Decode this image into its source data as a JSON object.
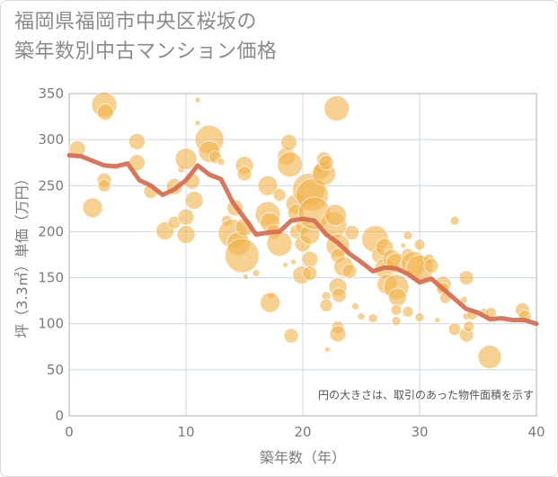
{
  "title_line1": "福岡県福岡市中央区桜坂の",
  "title_line2": "築年数別中古マンション価格",
  "chart_data": {
    "type": "scatter",
    "xlabel": "築年数（年）",
    "ylabel": "坪（3.3㎡）単価（万円）",
    "xlim": [
      0,
      40
    ],
    "ylim": [
      0,
      350
    ],
    "x_ticks": [
      "0",
      "10",
      "20",
      "30",
      "40"
    ],
    "y_ticks": [
      "0",
      "50",
      "100",
      "150",
      "200",
      "250",
      "300",
      "350"
    ],
    "grid": true,
    "note": "円の大きさは、取引のあった物件面積を示す",
    "colors": {
      "bubble": "#f2b24a",
      "trend": "#d66a50",
      "grid": "#c9d7e6"
    },
    "trend_line": {
      "x": [
        0,
        1,
        2,
        3,
        4,
        5,
        6,
        7,
        8,
        9,
        10,
        11,
        12,
        13,
        14,
        15,
        16,
        17,
        18,
        19,
        20,
        21,
        22,
        23,
        24,
        25,
        26,
        27,
        28,
        29,
        30,
        31,
        32,
        33,
        34,
        35,
        36,
        37,
        38,
        39,
        40
      ],
      "y": [
        283,
        282,
        277,
        272,
        271,
        274,
        256,
        250,
        240,
        246,
        256,
        272,
        262,
        257,
        232,
        215,
        197,
        199,
        200,
        212,
        214,
        212,
        197,
        188,
        176,
        167,
        157,
        161,
        160,
        154,
        145,
        149,
        138,
        127,
        116,
        112,
        105,
        106,
        104,
        104,
        100
      ]
    },
    "bubbles": [
      {
        "x": 0.7,
        "y": 290,
        "r": 9
      },
      {
        "x": 2,
        "y": 226,
        "r": 11
      },
      {
        "x": 3,
        "y": 338,
        "r": 14
      },
      {
        "x": 3.1,
        "y": 330,
        "r": 9
      },
      {
        "x": 3,
        "y": 256,
        "r": 8
      },
      {
        "x": 3,
        "y": 250,
        "r": 7
      },
      {
        "x": 5.8,
        "y": 298,
        "r": 9
      },
      {
        "x": 5.8,
        "y": 275,
        "r": 9
      },
      {
        "x": 7,
        "y": 244,
        "r": 8
      },
      {
        "x": 8.2,
        "y": 201,
        "r": 10
      },
      {
        "x": 9,
        "y": 249,
        "r": 9
      },
      {
        "x": 9,
        "y": 210,
        "r": 7
      },
      {
        "x": 9.6,
        "y": 268,
        "r": 4
      },
      {
        "x": 10,
        "y": 197,
        "r": 10
      },
      {
        "x": 10,
        "y": 216,
        "r": 9
      },
      {
        "x": 10,
        "y": 279,
        "r": 12
      },
      {
        "x": 10.5,
        "y": 255,
        "r": 9
      },
      {
        "x": 10.7,
        "y": 234,
        "r": 10
      },
      {
        "x": 11,
        "y": 343,
        "r": 3
      },
      {
        "x": 11,
        "y": 318,
        "r": 3
      },
      {
        "x": 12,
        "y": 300,
        "r": 16
      },
      {
        "x": 12,
        "y": 287,
        "r": 12
      },
      {
        "x": 12.5,
        "y": 281,
        "r": 7
      },
      {
        "x": 13,
        "y": 276,
        "r": 4
      },
      {
        "x": 13.5,
        "y": 212,
        "r": 6
      },
      {
        "x": 14,
        "y": 198,
        "r": 16
      },
      {
        "x": 14.2,
        "y": 226,
        "r": 9
      },
      {
        "x": 14.5,
        "y": 187,
        "r": 13
      },
      {
        "x": 14.8,
        "y": 174,
        "r": 19
      },
      {
        "x": 15,
        "y": 205,
        "r": 10
      },
      {
        "x": 15,
        "y": 272,
        "r": 10
      },
      {
        "x": 15,
        "y": 263,
        "r": 8
      },
      {
        "x": 15.1,
        "y": 151,
        "r": 3
      },
      {
        "x": 16,
        "y": 155,
        "r": 4
      },
      {
        "x": 17,
        "y": 250,
        "r": 11
      },
      {
        "x": 17,
        "y": 219,
        "r": 14
      },
      {
        "x": 17.2,
        "y": 210,
        "r": 11
      },
      {
        "x": 17.3,
        "y": 131,
        "r": 4
      },
      {
        "x": 17.2,
        "y": 123,
        "r": 11
      },
      {
        "x": 17.5,
        "y": 200,
        "r": 8
      },
      {
        "x": 18,
        "y": 187,
        "r": 14
      },
      {
        "x": 18,
        "y": 240,
        "r": 7
      },
      {
        "x": 18.5,
        "y": 164,
        "r": 3
      },
      {
        "x": 18.6,
        "y": 282,
        "r": 10
      },
      {
        "x": 18.8,
        "y": 297,
        "r": 9
      },
      {
        "x": 18.9,
        "y": 273,
        "r": 14
      },
      {
        "x": 19,
        "y": 87,
        "r": 8
      },
      {
        "x": 19.2,
        "y": 167,
        "r": 3
      },
      {
        "x": 19.4,
        "y": 230,
        "r": 11
      },
      {
        "x": 19.4,
        "y": 221,
        "r": 9
      },
      {
        "x": 19.5,
        "y": 200,
        "r": 8
      },
      {
        "x": 19.9,
        "y": 153,
        "r": 10
      },
      {
        "x": 20,
        "y": 205,
        "r": 8
      },
      {
        "x": 20,
        "y": 187,
        "r": 9
      },
      {
        "x": 20.5,
        "y": 246,
        "r": 18
      },
      {
        "x": 20.6,
        "y": 170,
        "r": 9
      },
      {
        "x": 20.6,
        "y": 155,
        "r": 8
      },
      {
        "x": 20.8,
        "y": 240,
        "r": 18
      },
      {
        "x": 20.6,
        "y": 197,
        "r": 11
      },
      {
        "x": 21,
        "y": 220,
        "r": 18
      },
      {
        "x": 21.5,
        "y": 270,
        "r": 6
      },
      {
        "x": 21.6,
        "y": 266,
        "r": 9
      },
      {
        "x": 21.8,
        "y": 263,
        "r": 13
      },
      {
        "x": 21.8,
        "y": 279,
        "r": 8
      },
      {
        "x": 22,
        "y": 275,
        "r": 8
      },
      {
        "x": 22,
        "y": 130,
        "r": 5
      },
      {
        "x": 22,
        "y": 120,
        "r": 7
      },
      {
        "x": 22.1,
        "y": 72,
        "r": 3
      },
      {
        "x": 22.6,
        "y": 207,
        "r": 15
      },
      {
        "x": 22.8,
        "y": 218,
        "r": 12
      },
      {
        "x": 22.9,
        "y": 334,
        "r": 14
      },
      {
        "x": 23,
        "y": 185,
        "r": 13
      },
      {
        "x": 23,
        "y": 174,
        "r": 8
      },
      {
        "x": 23,
        "y": 96,
        "r": 7
      },
      {
        "x": 23,
        "y": 89,
        "r": 9
      },
      {
        "x": 23,
        "y": 140,
        "r": 10
      },
      {
        "x": 23.1,
        "y": 131,
        "r": 8
      },
      {
        "x": 23.5,
        "y": 162,
        "r": 11
      },
      {
        "x": 24,
        "y": 157,
        "r": 8
      },
      {
        "x": 24.2,
        "y": 199,
        "r": 8
      },
      {
        "x": 24.5,
        "y": 119,
        "r": 4
      },
      {
        "x": 25,
        "y": 108,
        "r": 4
      },
      {
        "x": 26,
        "y": 106,
        "r": 5
      },
      {
        "x": 26.2,
        "y": 192,
        "r": 15
      },
      {
        "x": 26.5,
        "y": 174,
        "r": 8
      },
      {
        "x": 27,
        "y": 183,
        "r": 10
      },
      {
        "x": 27,
        "y": 160,
        "r": 11
      },
      {
        "x": 27.2,
        "y": 143,
        "r": 11
      },
      {
        "x": 27.6,
        "y": 171,
        "r": 10
      },
      {
        "x": 28,
        "y": 166,
        "r": 11
      },
      {
        "x": 28,
        "y": 140,
        "r": 14
      },
      {
        "x": 28.1,
        "y": 129,
        "r": 10
      },
      {
        "x": 28,
        "y": 115,
        "r": 6
      },
      {
        "x": 28,
        "y": 103,
        "r": 5
      },
      {
        "x": 28.6,
        "y": 185,
        "r": 3
      },
      {
        "x": 29,
        "y": 196,
        "r": 5
      },
      {
        "x": 29,
        "y": 175,
        "r": 7
      },
      {
        "x": 29,
        "y": 113,
        "r": 6
      },
      {
        "x": 29.5,
        "y": 165,
        "r": 14
      },
      {
        "x": 30,
        "y": 186,
        "r": 6
      },
      {
        "x": 30,
        "y": 160,
        "r": 15
      },
      {
        "x": 30,
        "y": 107,
        "r": 5
      },
      {
        "x": 30.8,
        "y": 170,
        "r": 6
      },
      {
        "x": 31,
        "y": 163,
        "r": 8
      },
      {
        "x": 31.5,
        "y": 104,
        "r": 3
      },
      {
        "x": 32,
        "y": 143,
        "r": 9
      },
      {
        "x": 32,
        "y": 138,
        "r": 7
      },
      {
        "x": 32.2,
        "y": 128,
        "r": 6
      },
      {
        "x": 33,
        "y": 212,
        "r": 5
      },
      {
        "x": 33,
        "y": 94,
        "r": 7
      },
      {
        "x": 33.8,
        "y": 126,
        "r": 4
      },
      {
        "x": 34,
        "y": 150,
        "r": 8
      },
      {
        "x": 34,
        "y": 108,
        "r": 4
      },
      {
        "x": 34,
        "y": 88,
        "r": 8
      },
      {
        "x": 34.2,
        "y": 97,
        "r": 6
      },
      {
        "x": 34.5,
        "y": 110,
        "r": 6
      },
      {
        "x": 35.5,
        "y": 112,
        "r": 5
      },
      {
        "x": 36,
        "y": 64,
        "r": 13
      },
      {
        "x": 36.1,
        "y": 112,
        "r": 6
      },
      {
        "x": 38.8,
        "y": 115,
        "r": 8
      },
      {
        "x": 39,
        "y": 108,
        "r": 7
      }
    ]
  }
}
